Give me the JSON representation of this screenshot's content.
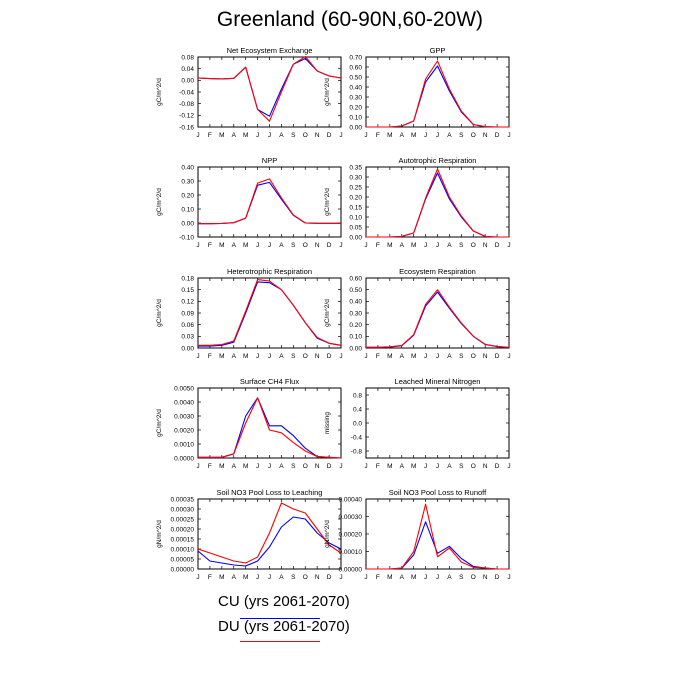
{
  "figure": {
    "title": "Greenland (60-90N,60-20W)",
    "colors": {
      "CU": "#0000ff",
      "DU": "#ff0000"
    }
  },
  "legend": [
    {
      "label": "CU (yrs 2061-2070)",
      "color": "#0000ff"
    },
    {
      "label": "DU (yrs 2061-2070)",
      "color": "#ff0000"
    }
  ],
  "chart_data": [
    {
      "type": "line",
      "title": "Net Ecosystem Exchange",
      "ylabel": "gC/m^2/d",
      "x": [
        "J",
        "F",
        "M",
        "A",
        "M",
        "J",
        "J",
        "A",
        "S",
        "O",
        "N",
        "D",
        "J"
      ],
      "ylim": [
        -0.16,
        0.08
      ],
      "yticks": [
        "-0.16",
        "-0.12",
        "-0.08",
        "-0.04",
        "0.00",
        "0.04",
        "0.08"
      ],
      "series": [
        {
          "name": "CU",
          "values": [
            0.008,
            0.006,
            0.005,
            0.007,
            0.045,
            -0.1,
            -0.123,
            -0.03,
            0.055,
            0.075,
            0.032,
            0.015,
            0.008
          ]
        },
        {
          "name": "DU",
          "values": [
            0.008,
            0.006,
            0.005,
            0.007,
            0.045,
            -0.1,
            -0.14,
            -0.04,
            0.055,
            0.082,
            0.032,
            0.015,
            0.008
          ]
        }
      ]
    },
    {
      "type": "line",
      "title": "GPP",
      "ylabel": "gC/m^2/d",
      "x": [
        "J",
        "F",
        "M",
        "A",
        "M",
        "J",
        "J",
        "A",
        "S",
        "O",
        "N",
        "D",
        "J"
      ],
      "ylim": [
        0,
        0.7
      ],
      "yticks": [
        "0.00",
        "0.10",
        "0.20",
        "0.30",
        "0.40",
        "0.50",
        "0.60",
        "0.70"
      ],
      "series": [
        {
          "name": "CU",
          "values": [
            0,
            0,
            0,
            0.01,
            0.06,
            0.45,
            0.61,
            0.36,
            0.15,
            0.025,
            0.003,
            0,
            0
          ]
        },
        {
          "name": "DU",
          "values": [
            0,
            0,
            0,
            0.01,
            0.06,
            0.48,
            0.66,
            0.38,
            0.16,
            0.025,
            0.003,
            0,
            0
          ]
        }
      ]
    },
    {
      "type": "line",
      "title": "NPP",
      "ylabel": "gC/m^2/d",
      "x": [
        "J",
        "F",
        "M",
        "A",
        "M",
        "J",
        "J",
        "A",
        "S",
        "O",
        "N",
        "D",
        "J"
      ],
      "ylim": [
        -0.1,
        0.4
      ],
      "yticks": [
        "-0.10",
        "0.00",
        "0.10",
        "0.20",
        "0.30",
        "0.40"
      ],
      "series": [
        {
          "name": "CU",
          "values": [
            -0.005,
            -0.005,
            -0.003,
            0.002,
            0.035,
            0.27,
            0.29,
            0.17,
            0.055,
            0,
            -0.002,
            -0.002,
            -0.002
          ]
        },
        {
          "name": "DU",
          "values": [
            -0.005,
            -0.005,
            -0.003,
            0.002,
            0.035,
            0.285,
            0.315,
            0.18,
            0.058,
            0,
            -0.002,
            -0.002,
            -0.002
          ]
        }
      ]
    },
    {
      "type": "line",
      "title": "Autotrophic Respiration",
      "ylabel": "gC/m^2/d",
      "x": [
        "J",
        "F",
        "M",
        "A",
        "M",
        "J",
        "J",
        "A",
        "S",
        "O",
        "N",
        "D",
        "J"
      ],
      "ylim": [
        0,
        0.35
      ],
      "yticks": [
        "0.00",
        "0.05",
        "0.10",
        "0.15",
        "0.20",
        "0.25",
        "0.30",
        "0.35"
      ],
      "series": [
        {
          "name": "CU",
          "values": [
            0,
            0,
            0,
            0.003,
            0.02,
            0.19,
            0.32,
            0.19,
            0.1,
            0.03,
            0.003,
            0,
            0
          ]
        },
        {
          "name": "DU",
          "values": [
            0,
            0,
            0,
            0.003,
            0.02,
            0.195,
            0.34,
            0.2,
            0.105,
            0.03,
            0.003,
            0,
            0
          ]
        }
      ]
    },
    {
      "type": "line",
      "title": "Heterotrophic Respiration",
      "ylabel": "gC/m^2/d",
      "x": [
        "J",
        "F",
        "M",
        "A",
        "M",
        "J",
        "J",
        "A",
        "S",
        "O",
        "N",
        "D",
        "J"
      ],
      "ylim": [
        0,
        0.18
      ],
      "yticks": [
        "0.00",
        "0.03",
        "0.06",
        "0.09",
        "0.12",
        "0.15",
        "0.18"
      ],
      "series": [
        {
          "name": "CU",
          "values": [
            0.005,
            0.005,
            0.007,
            0.015,
            0.09,
            0.17,
            0.168,
            0.15,
            0.11,
            0.065,
            0.025,
            0.012,
            0.007
          ]
        },
        {
          "name": "DU",
          "values": [
            0.007,
            0.007,
            0.009,
            0.018,
            0.095,
            0.176,
            0.172,
            0.15,
            0.11,
            0.065,
            0.027,
            0.012,
            0.007
          ]
        }
      ]
    },
    {
      "type": "line",
      "title": "Ecosystem Respiration",
      "ylabel": "gC/m^2/d",
      "x": [
        "J",
        "F",
        "M",
        "A",
        "M",
        "J",
        "J",
        "A",
        "S",
        "O",
        "N",
        "D",
        "J"
      ],
      "ylim": [
        0,
        0.6
      ],
      "yticks": [
        "0.00",
        "0.10",
        "0.20",
        "0.30",
        "0.40",
        "0.50",
        "0.60"
      ],
      "series": [
        {
          "name": "CU",
          "values": [
            0.005,
            0.005,
            0.008,
            0.02,
            0.11,
            0.36,
            0.48,
            0.34,
            0.21,
            0.1,
            0.03,
            0.012,
            0.005
          ]
        },
        {
          "name": "DU",
          "values": [
            0.007,
            0.007,
            0.01,
            0.022,
            0.115,
            0.375,
            0.5,
            0.35,
            0.215,
            0.1,
            0.032,
            0.013,
            0.006
          ]
        }
      ]
    },
    {
      "type": "line",
      "title": "Surface CH4 Flux",
      "ylabel": "gC/m^2/d",
      "x": [
        "J",
        "F",
        "M",
        "A",
        "M",
        "J",
        "J",
        "A",
        "S",
        "O",
        "N",
        "D",
        "J"
      ],
      "ylim": [
        0,
        0.005
      ],
      "yticks": [
        "0.0000",
        "0.0010",
        "0.0020",
        "0.0030",
        "0.0040",
        "0.0050"
      ],
      "series": [
        {
          "name": "CU",
          "values": [
            5e-05,
            5e-05,
            5e-05,
            0.0003,
            0.003,
            0.0043,
            0.0023,
            0.0023,
            0.0016,
            0.0007,
            0.0001,
            5e-05,
            0
          ]
        },
        {
          "name": "DU",
          "values": [
            5e-05,
            5e-05,
            5e-05,
            0.0003,
            0.0025,
            0.0043,
            0.002,
            0.0018,
            0.0011,
            0.0005,
            0.0001,
            5e-05,
            0
          ]
        }
      ]
    },
    {
      "type": "line",
      "title": "Leached Mineral Nitrogen",
      "ylabel": "missing",
      "x": [
        "J",
        "F",
        "M",
        "A",
        "M",
        "J",
        "J",
        "A",
        "S",
        "O",
        "N",
        "D",
        "J"
      ],
      "ylim": [
        -1,
        1
      ],
      "yticks": [
        "-0.8",
        "-0.4",
        "0.0",
        "0.4",
        "0.8"
      ],
      "series": []
    },
    {
      "type": "line",
      "title": "Soil NO3 Pool Loss to Leaching",
      "ylabel": "gN/m^2/d",
      "x": [
        "J",
        "F",
        "M",
        "A",
        "M",
        "J",
        "J",
        "A",
        "S",
        "O",
        "N",
        "D",
        "J"
      ],
      "ylim": [
        0,
        0.00035
      ],
      "yticks": [
        "0.00000",
        "0.00005",
        "0.00010",
        "0.00015",
        "0.00020",
        "0.00025",
        "0.00030",
        "0.00035"
      ],
      "series": [
        {
          "name": "CU",
          "values": [
            9e-05,
            4e-05,
            3e-05,
            2e-05,
            1.5e-05,
            4e-05,
            0.00011,
            0.00021,
            0.00026,
            0.00025,
            0.00018,
            0.00013,
            0.0001
          ]
        },
        {
          "name": "DU",
          "values": [
            0.0001,
            8e-05,
            6e-05,
            4e-05,
            3e-05,
            6e-05,
            0.00018,
            0.00033,
            0.0003,
            0.00028,
            0.0002,
            0.00012,
            8e-05
          ]
        }
      ]
    },
    {
      "type": "line",
      "title": "Soil NO3 Pool Loss to Runoff",
      "ylabel": "gN/m^2/d",
      "x": [
        "J",
        "F",
        "M",
        "A",
        "M",
        "J",
        "J",
        "A",
        "S",
        "O",
        "N",
        "D",
        "J"
      ],
      "ylim": [
        0,
        0.0004
      ],
      "yticks": [
        "0.00000",
        "0.00010",
        "0.00020",
        "0.00030",
        "0.00040"
      ],
      "series": [
        {
          "name": "CU",
          "values": [
            0,
            0,
            0,
            5e-06,
            8e-05,
            0.00027,
            9e-05,
            0.00013,
            6e-05,
            1.5e-05,
            5e-06,
            0,
            0
          ]
        },
        {
          "name": "DU",
          "values": [
            0,
            0,
            0,
            5e-06,
            0.0001,
            0.00037,
            7e-05,
            0.00012,
            4e-05,
            1e-05,
            5e-06,
            0,
            0
          ]
        }
      ]
    }
  ]
}
